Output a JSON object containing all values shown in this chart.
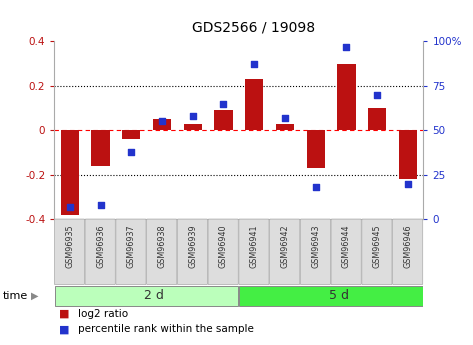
{
  "title": "GDS2566 / 19098",
  "samples": [
    "GSM96935",
    "GSM96936",
    "GSM96937",
    "GSM96938",
    "GSM96939",
    "GSM96940",
    "GSM96941",
    "GSM96942",
    "GSM96943",
    "GSM96944",
    "GSM96945",
    "GSM96946"
  ],
  "log2_ratio": [
    -0.38,
    -0.16,
    -0.04,
    0.05,
    0.03,
    0.09,
    0.23,
    0.03,
    -0.17,
    0.3,
    0.1,
    -0.22
  ],
  "percentile": [
    7,
    8,
    38,
    55,
    58,
    65,
    87,
    57,
    18,
    97,
    70,
    20
  ],
  "bar_color": "#bb1111",
  "dot_color": "#2233cc",
  "group1_label": "2 d",
  "group2_label": "5 d",
  "group1_count": 6,
  "group2_count": 6,
  "group1_color": "#bbffbb",
  "group2_color": "#44ee44",
  "ylim_left": [
    -0.4,
    0.4
  ],
  "ylim_right": [
    0,
    100
  ],
  "yticks_left": [
    -0.4,
    -0.2,
    0.0,
    0.2,
    0.4
  ],
  "yticks_right": [
    0,
    25,
    50,
    75,
    100
  ],
  "ytick_labels_left": [
    "-0.4",
    "-0.2",
    "0",
    "0.2",
    "0.4"
  ],
  "ytick_labels_right": [
    "0",
    "25",
    "50",
    "75",
    "100%"
  ],
  "time_label": "time",
  "legend_bar_label": "log2 ratio",
  "legend_dot_label": "percentile rank within the sample",
  "bar_width": 0.6,
  "bg_color": "#ffffff",
  "tick_label_gray": "#888888"
}
